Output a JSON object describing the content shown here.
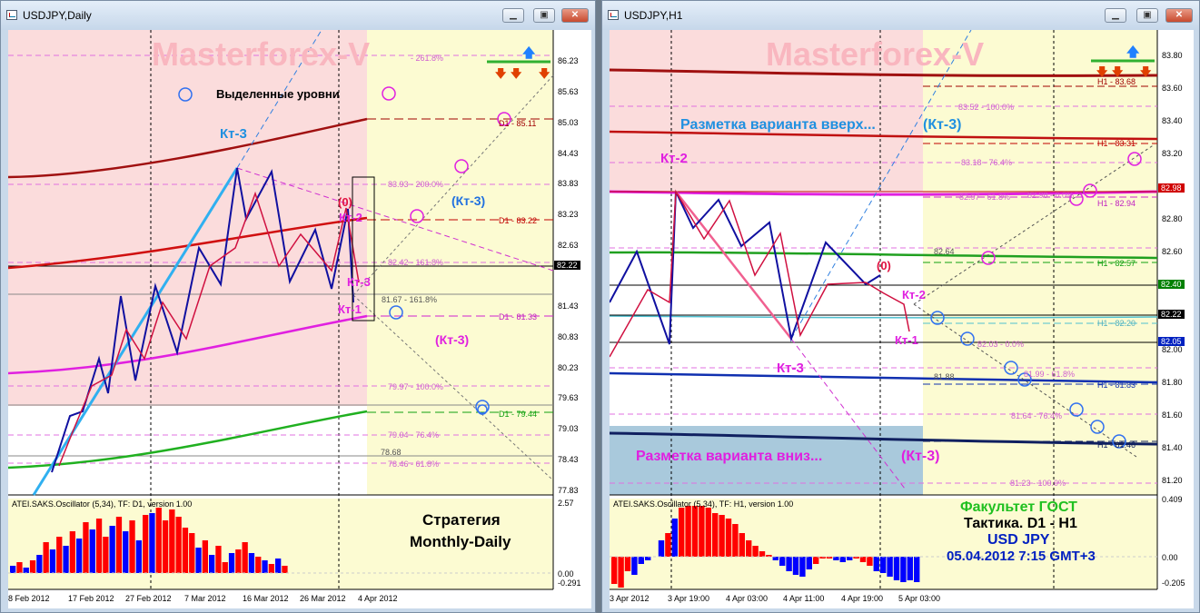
{
  "left": {
    "title": "USDJPY,Daily",
    "watermark": "Masterforex-V",
    "legend_label": "Выделенные уровни",
    "price_labels": [
      "86.23",
      "85.63",
      "85.03",
      "84.43",
      "83.83",
      "83.23",
      "82.63",
      "82.22",
      "81.43",
      "80.83",
      "80.23",
      "79.63",
      "79.03",
      "78.43",
      "77.83"
    ],
    "fib_labels": [
      "- 261.8%",
      "83.93 - 200.0%",
      "82.42 - 161.8%",
      "81.67 - 161.8%",
      "79.97 - 100.0%",
      "79.04 - 76.4%",
      "78.68",
      "78.46 - 61.8%"
    ],
    "level_labels": [
      "D1 - 85.11",
      "D1 - 83.22",
      "D1 - 81.33",
      "D1 - 79.44"
    ],
    "wave_labels": {
      "kt3_top": "Кт-3",
      "zero": "(0)",
      "kt2": "Кт-2",
      "kt3_mid": "Кт-3",
      "kt1": "Кт-1",
      "kt3_right": "(Кт-3)",
      "kt3_low": "(Кт-3)"
    },
    "osc_title": "ATEI.SAKS.Oscillator (5,34), TF: D1, version 1.00",
    "osc_scale": [
      "2.57",
      "0.00",
      "-0.291"
    ],
    "strategy": [
      "Стратегия",
      "Monthly-Daily"
    ],
    "x_labels": [
      "8 Feb 2012",
      "17 Feb 2012",
      "27 Feb 2012",
      "7 Mar 2012",
      "16 Mar 2012",
      "26 Mar 2012",
      "4 Apr 2012"
    ]
  },
  "right": {
    "title": "USDJPY,H1",
    "watermark": "Masterforex-V",
    "up_markup": "Разметка варианта вверх...",
    "down_markup": "Разметка варианта вниз...",
    "price_labels": [
      "83.80",
      "83.60",
      "83.40",
      "83.20",
      "82.98",
      "82.80",
      "82.60",
      "82.40",
      "82.22",
      "82.05",
      "82.00",
      "81.80",
      "81.60",
      "81.40",
      "81.20"
    ],
    "fib_labels": [
      "83.52 - 100.0%",
      "83.18 - 76.4%",
      "82.97 - 61.8%",
      "82.98 - 0.0%",
      "82.64",
      "82.03 - 0.0%",
      "81.88",
      "81.99 - 61.8%",
      "81.64 - 76.4%",
      "81.23 - 100.0%"
    ],
    "level_labels": [
      "H1 - 83.68",
      "H1 - 83.31",
      "H1 - 82.94",
      "H1 - 82.57",
      "H1 - 82.20",
      "H1 - 81.83",
      "H1 - 81.46"
    ],
    "wave_labels": {
      "kt3_up": "(Кт-3)",
      "kt2": "Кт-2",
      "zero": "(0)",
      "kt2_right": "Кт-2",
      "kt1": "Кт-1",
      "kt3_low": "Кт-3",
      "kt3_down": "(Кт-3)"
    },
    "osc_title": "ATEI.SAKS.Oscillator (5,34), TF: H1, version 1.00",
    "osc_scale": [
      "0.409",
      "0.00",
      "-0.205"
    ],
    "faculty": [
      "Факультет ГОСТ",
      "Тактика. D1 - H1",
      "USD JPY",
      "05.04.2012 7:15 GMT+3"
    ],
    "x_labels": [
      "3 Apr 2012",
      "3 Apr 19:00",
      "4 Apr 03:00",
      "4 Apr 11:00",
      "4 Apr 19:00",
      "5 Apr 03:00"
    ]
  },
  "colors": {
    "pink_zone": "#fbdcdc",
    "yellow_zone": "#fcfbd2",
    "blue_zone": "#a9c9dc",
    "red_bar": "#ff0000",
    "blue_bar": "#0000ff"
  }
}
